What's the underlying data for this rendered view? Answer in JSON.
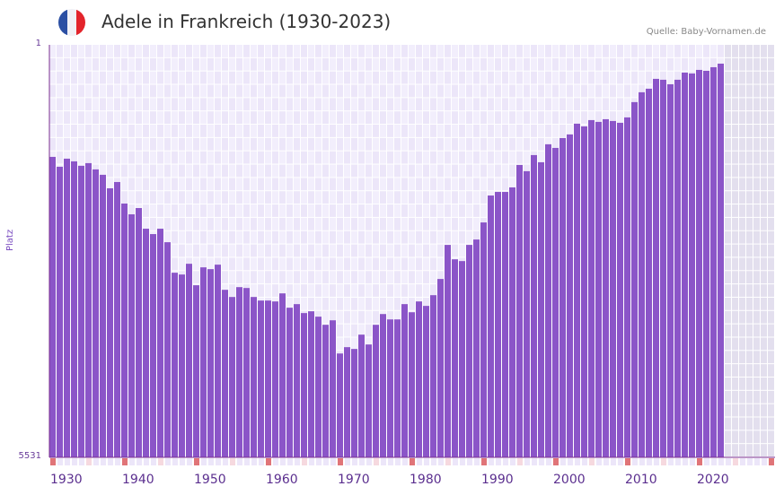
{
  "header": {
    "title": "Adele in Frankreich (1930-2023)",
    "flag_colors": [
      "#2b4fa3",
      "#f1f1f6",
      "#e3242b"
    ],
    "source": "Quelle: Baby-Vornamen.de"
  },
  "colors": {
    "bar": "#8b55c8",
    "grid_bg": "#f2eefc",
    "grid_alt": "#ece6f9",
    "future_bg": "#e3dfee",
    "tick_strong": "#e07478",
    "tick_light": "#f6d9df",
    "axis": "#7a2d8f"
  },
  "chart_data": {
    "type": "bar",
    "title": "Adele in Frankreich (1930-2023)",
    "xlabel": "",
    "ylabel": "Platz",
    "y_axis_inverted": true,
    "ylim": [
      1,
      5531
    ],
    "y_ticks": [
      "1",
      "5531"
    ],
    "x_ticks": [
      "1930",
      "1940",
      "1950",
      "1960",
      "1970",
      "1980",
      "1990",
      "2000",
      "2010",
      "2020"
    ],
    "categories": [
      1930,
      1931,
      1932,
      1933,
      1934,
      1935,
      1936,
      1937,
      1938,
      1939,
      1940,
      1941,
      1942,
      1943,
      1944,
      1945,
      1946,
      1947,
      1948,
      1949,
      1950,
      1951,
      1952,
      1953,
      1954,
      1955,
      1956,
      1957,
      1958,
      1959,
      1960,
      1961,
      1962,
      1963,
      1964,
      1965,
      1966,
      1967,
      1968,
      1969,
      1970,
      1971,
      1972,
      1973,
      1974,
      1975,
      1976,
      1977,
      1978,
      1979,
      1980,
      1981,
      1982,
      1983,
      1984,
      1985,
      1986,
      1987,
      1988,
      1989,
      1990,
      1991,
      1992,
      1993,
      1994,
      1995,
      1996,
      1997,
      1998,
      1999,
      2000,
      2001,
      2002,
      2003,
      2004,
      2005,
      2006,
      2007,
      2008,
      2009,
      2010,
      2011,
      2012,
      2013,
      2014,
      2015,
      2016,
      2017,
      2018,
      2019,
      2020,
      2021,
      2022,
      2023
    ],
    "values": [
      1503,
      1635,
      1527,
      1563,
      1623,
      1587,
      1671,
      1743,
      1924,
      1840,
      2129,
      2273,
      2189,
      2466,
      2538,
      2466,
      2647,
      3056,
      3080,
      2936,
      3224,
      2984,
      3008,
      2948,
      3285,
      3381,
      3249,
      3261,
      3381,
      3429,
      3429,
      3441,
      3333,
      3525,
      3477,
      3597,
      3573,
      3645,
      3754,
      3694,
      4139,
      4054,
      4078,
      3886,
      4018,
      3754,
      3610,
      3682,
      3682,
      3477,
      3586,
      3441,
      3501,
      3357,
      3140,
      2683,
      2876,
      2900,
      2683,
      2611,
      2382,
      2021,
      1973,
      1973,
      1912,
      1611,
      1695,
      1479,
      1575,
      1334,
      1383,
      1250,
      1202,
      1058,
      1094,
      1010,
      1034,
      998,
      1022,
      1046,
      974,
      769,
      637,
      589,
      457,
      469,
      529,
      469,
      373,
      385,
      337,
      349,
      301,
      253
    ],
    "future_years_shaded": [
      2024,
      2029
    ]
  }
}
